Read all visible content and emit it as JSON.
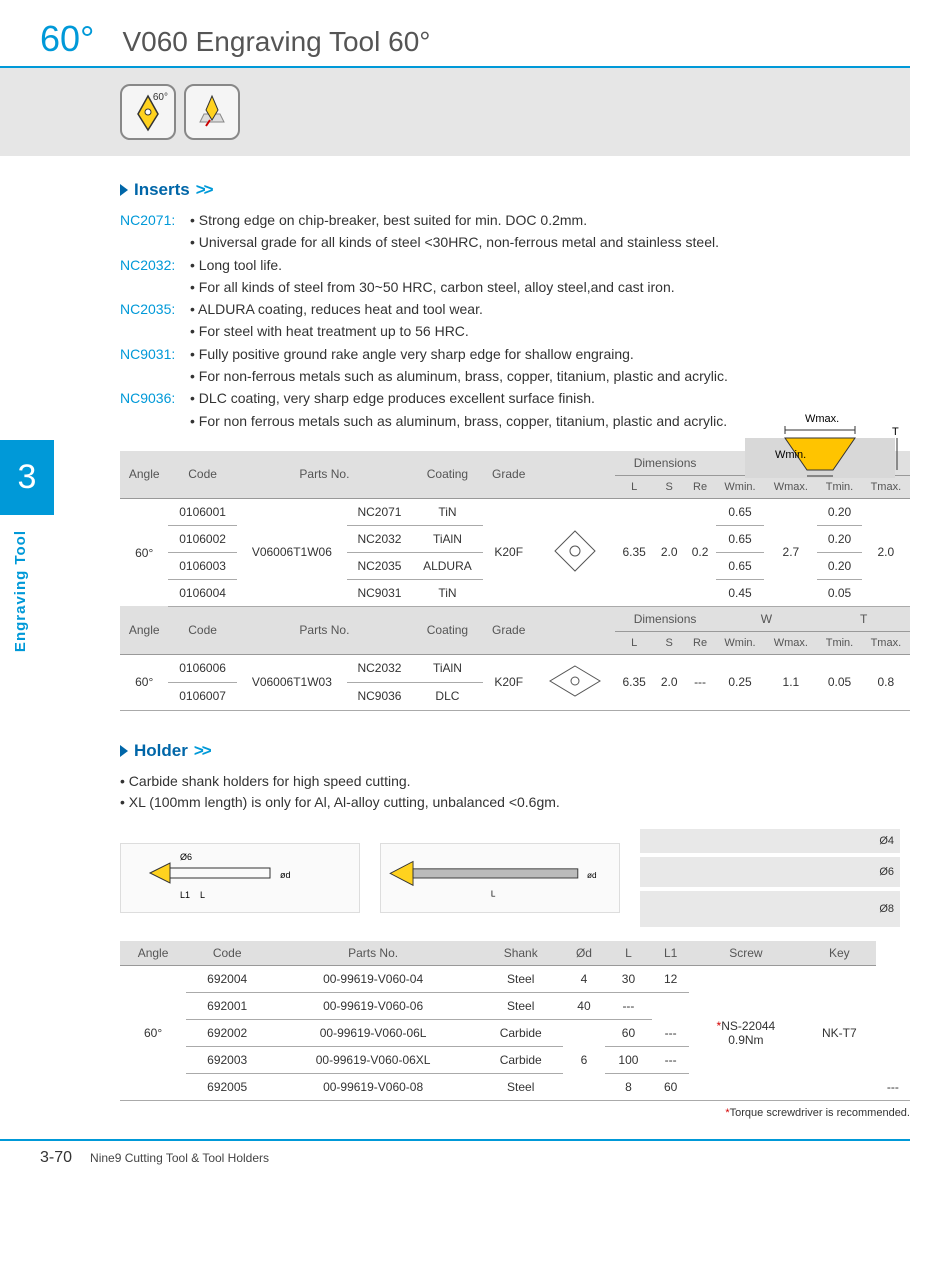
{
  "header": {
    "angle": "60°",
    "title": "V060 Engraving Tool 60°"
  },
  "sidebar": {
    "chapter": "3",
    "label": "Engraving Tool"
  },
  "section_inserts": {
    "heading": "Inserts",
    "chevron": ">>",
    "items": [
      {
        "code": "NC2071:",
        "bullets": [
          "Strong edge on chip-breaker, best suited for min. DOC 0.2mm.",
          "Universal grade for all kinds of  steel <30HRC, non-ferrous metal and stainless steel."
        ]
      },
      {
        "code": "NC2032:",
        "bullets": [
          "Long tool life.",
          "For all kinds of steel from 30~50 HRC, carbon steel, alloy steel,and cast iron."
        ]
      },
      {
        "code": "NC2035:",
        "bullets": [
          "ALDURA coating, reduces heat and tool wear.",
          "For steel with heat treatment up to 56 HRC."
        ]
      },
      {
        "code": "NC9031:",
        "bullets": [
          "Fully positive ground rake angle very sharp edge for shallow engraing.",
          "For non-ferrous metals such as aluminum, brass, copper, titanium, plastic and acrylic."
        ]
      },
      {
        "code": "NC9036:",
        "bullets": [
          "DLC coating, very sharp edge produces excellent surface finish.",
          "For non ferrous metals such as aluminum, brass, copper, titanium, plastic and acrylic."
        ]
      }
    ],
    "diagram_labels": {
      "wmax": "Wmax.",
      "wmin": "Wmin.",
      "t": "T"
    }
  },
  "inserts_table": {
    "header_top": [
      "Angle",
      "Code",
      "Parts No.",
      "Coating",
      "Grade",
      "",
      "Dimensions",
      "",
      "",
      "W",
      "",
      "T",
      ""
    ],
    "header_sub_dims": [
      "L",
      "S",
      "Re",
      "Wmin.",
      "Wmax.",
      "Tmin.",
      "Tmax."
    ],
    "group1": {
      "angle": "60°",
      "parts_no": "V06006T1W06",
      "grade": "K20F",
      "L": "6.35",
      "S": "2.0",
      "Re": "0.2",
      "Wmax": "2.7",
      "Tmax": "2.0",
      "rows": [
        {
          "code": "0106001",
          "coat_code": "NC2071",
          "coating": "TiN",
          "Wmin": "0.65",
          "Tmin": "0.20"
        },
        {
          "code": "0106002",
          "coat_code": "NC2032",
          "coating": "TiAlN",
          "Wmin": "0.65",
          "Tmin": "0.20"
        },
        {
          "code": "0106003",
          "coat_code": "NC2035",
          "coating": "ALDURA",
          "Wmin": "0.65",
          "Tmin": "0.20"
        },
        {
          "code": "0106004",
          "coat_code": "NC9031",
          "coating": "TiN",
          "Wmin": "0.45",
          "Tmin": "0.05"
        }
      ]
    },
    "group2": {
      "angle": "60°",
      "parts_no": "V06006T1W03",
      "grade": "K20F",
      "L": "6.35",
      "S": "2.0",
      "Re": "---",
      "Wmin": "0.25",
      "Wmax": "1.1",
      "Tmin": "0.05",
      "Tmax": "0.8",
      "rows": [
        {
          "code": "0106006",
          "coat_code": "NC2032",
          "coating": "TiAlN"
        },
        {
          "code": "0106007",
          "coat_code": "NC9036",
          "coating": "DLC"
        }
      ]
    }
  },
  "section_holder": {
    "heading": "Holder",
    "chevron": ">>",
    "notes": [
      "Carbide shank holders for high speed cutting.",
      "XL (100mm length) is only for Al, Al-alloy cutting, unbalanced <0.6gm."
    ],
    "photo_labels": [
      "Ø4",
      "Ø6",
      "Ø8"
    ],
    "diag_labels": {
      "d6": "Ø6",
      "od": "ød",
      "L": "L",
      "L1": "L1"
    }
  },
  "holder_table": {
    "columns": [
      "Angle",
      "Code",
      "Parts No.",
      "Shank",
      "Ød",
      "L",
      "L1",
      "Screw",
      "Key"
    ],
    "angle": "60°",
    "screw_line1": "NS-22044",
    "screw_line2": "0.9Nm",
    "screw_ast": "*",
    "key": "NK-T7",
    "rows": [
      {
        "code": "692004",
        "parts": "00-99619-V060-04",
        "shank": "Steel",
        "od": "4",
        "L": "30",
        "L1": "12"
      },
      {
        "code": "692001",
        "parts": "00-99619-V060-06",
        "shank": "Steel",
        "od": "",
        "L": "40",
        "L1": "---"
      },
      {
        "code": "692002",
        "parts": "00-99619-V060-06L",
        "shank": "Carbide",
        "od": "6",
        "L": "60",
        "L1": "---"
      },
      {
        "code": "692003",
        "parts": "00-99619-V060-06XL",
        "shank": "Carbide",
        "od": "",
        "L": "100",
        "L1": "---"
      },
      {
        "code": "692005",
        "parts": "00-99619-V060-08",
        "shank": "Steel",
        "od": "8",
        "L": "60",
        "L1": "---"
      }
    ]
  },
  "footnote": {
    "ast": "*",
    "text": "Torque screwdriver is recommended."
  },
  "footer": {
    "page": "3-70",
    "text": "Nine9 Cutting Tool & Tool Holders"
  },
  "colors": {
    "accent": "#0099d8",
    "accent_dark": "#0066a8",
    "grey_bg": "#e6e6e6",
    "th_bg": "#e0e0e0",
    "red": "#d40000"
  }
}
